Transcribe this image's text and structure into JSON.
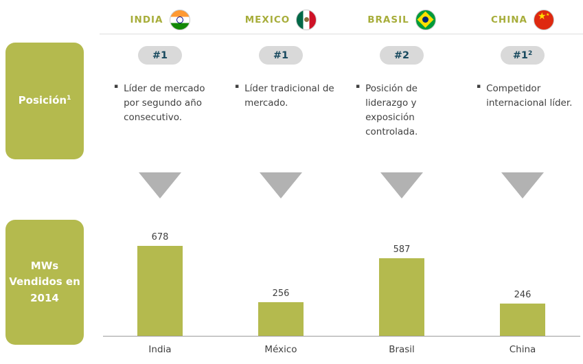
{
  "icons": {
    "bullet": "▪",
    "star": "★"
  },
  "colors": {
    "accent_olive": "#b4ba4e",
    "country_text": "#a7ad3a",
    "badge_bg": "#d9d9d9",
    "badge_text": "#17495e",
    "body_text": "#3f3f3f",
    "triangle_gray": "#b2b2b2"
  },
  "header": {
    "columns": [
      {
        "name": "INDIA",
        "flag": "india-flag"
      },
      {
        "name": "MEXICO",
        "flag": "mexico-flag"
      },
      {
        "name": "BRASIL",
        "flag": "brasil-flag"
      },
      {
        "name": "CHINA",
        "flag": "china-flag"
      }
    ]
  },
  "position_row": {
    "label": "Posición",
    "label_footnote": "1",
    "cells": [
      {
        "rank": "#1",
        "rank_footnote": "",
        "description": "Líder de mercado por segundo año consecutivo."
      },
      {
        "rank": "#1",
        "rank_footnote": "",
        "description": "Líder tradicional de mercado."
      },
      {
        "rank": "#2",
        "rank_footnote": "",
        "description": "Posición de liderazgo y exposición controlada."
      },
      {
        "rank": "#1",
        "rank_footnote": "2",
        "description": "Competidor internacional líder."
      }
    ]
  },
  "chart_row": {
    "label_lines": [
      "MWs",
      "Vendidos en",
      "2014"
    ]
  },
  "chart_data": {
    "type": "bar",
    "title": "MWs Vendidos en 2014",
    "categories": [
      "India",
      "México",
      "Brasil",
      "China"
    ],
    "values": [
      678,
      256,
      587,
      246
    ],
    "ylim": [
      0,
      700
    ],
    "grid": false,
    "legend": "none",
    "bar_color": "#b4ba4e"
  }
}
